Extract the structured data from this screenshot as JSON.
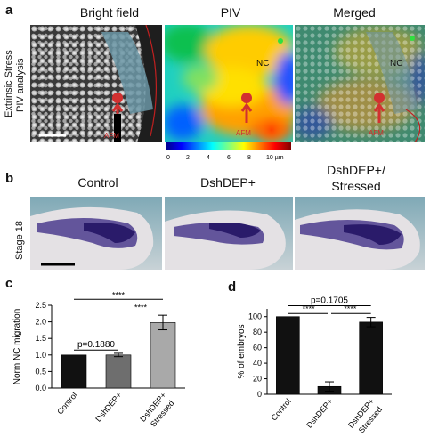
{
  "panel_a": {
    "letter": "a",
    "row_label_line1": "Extrinsic Stress",
    "row_label_line2": "PIV analysis",
    "titles": [
      "Bright field",
      "PIV",
      "Merged"
    ],
    "nc_label": "NC",
    "afm_label": "AFM",
    "colorbar_ticks": [
      "0",
      "2",
      "4",
      "6",
      "8",
      "10 µm"
    ],
    "colorbar_colors": [
      "#00008f",
      "#0000ff",
      "#0080ff",
      "#00ffff",
      "#80ff80",
      "#ffff00",
      "#ff8000",
      "#ff0000",
      "#800000"
    ]
  },
  "panel_b": {
    "letter": "b",
    "row_label": "Stage 18",
    "titles": [
      "Control",
      "DshDEP+",
      "DshDEP+/",
      "Stressed"
    ]
  },
  "panel_c": {
    "letter": "c",
    "ylabel": "Norm NC migration",
    "yticks": [
      "0.0",
      "0.5",
      "1.0",
      "1.5",
      "2.0",
      "2.5"
    ],
    "xtick_labels": [
      "Control",
      "DshDEP+",
      "DshDEP+",
      "Stressed"
    ],
    "stat_p": "p=0.1880",
    "stat_sig1": "****",
    "stat_sig2": "****"
  },
  "panel_d": {
    "letter": "d",
    "ylabel": "% of embryos",
    "yticks": [
      "0",
      "20",
      "40",
      "60",
      "80",
      "100"
    ],
    "xtick_labels": [
      "Control",
      "DshDEP+",
      "DshDEP+",
      "Stressed"
    ],
    "stat_p": "p=0.1705",
    "stat_sig1": "****",
    "stat_sig2": "****"
  },
  "chart_data": [
    {
      "type": "bar",
      "ylabel": "Norm NC migration",
      "categories": [
        "Control",
        "DshDEP+",
        "DshDEP+/Stressed"
      ],
      "values": [
        1.0,
        1.0,
        1.98
      ],
      "errors": [
        0.0,
        0.05,
        0.22
      ],
      "colors": [
        "#111111",
        "#6e6e6e",
        "#a9a9a9"
      ],
      "ylim": [
        0,
        2.5
      ]
    },
    {
      "type": "bar",
      "ylabel": "% of embryos",
      "categories": [
        "Control",
        "DshDEP+",
        "DshDEP+/Stressed"
      ],
      "values": [
        100,
        10,
        93
      ],
      "errors": [
        0,
        6,
        6
      ],
      "colors": [
        "#111111",
        "#111111",
        "#111111"
      ],
      "ylim": [
        0,
        110
      ]
    }
  ]
}
